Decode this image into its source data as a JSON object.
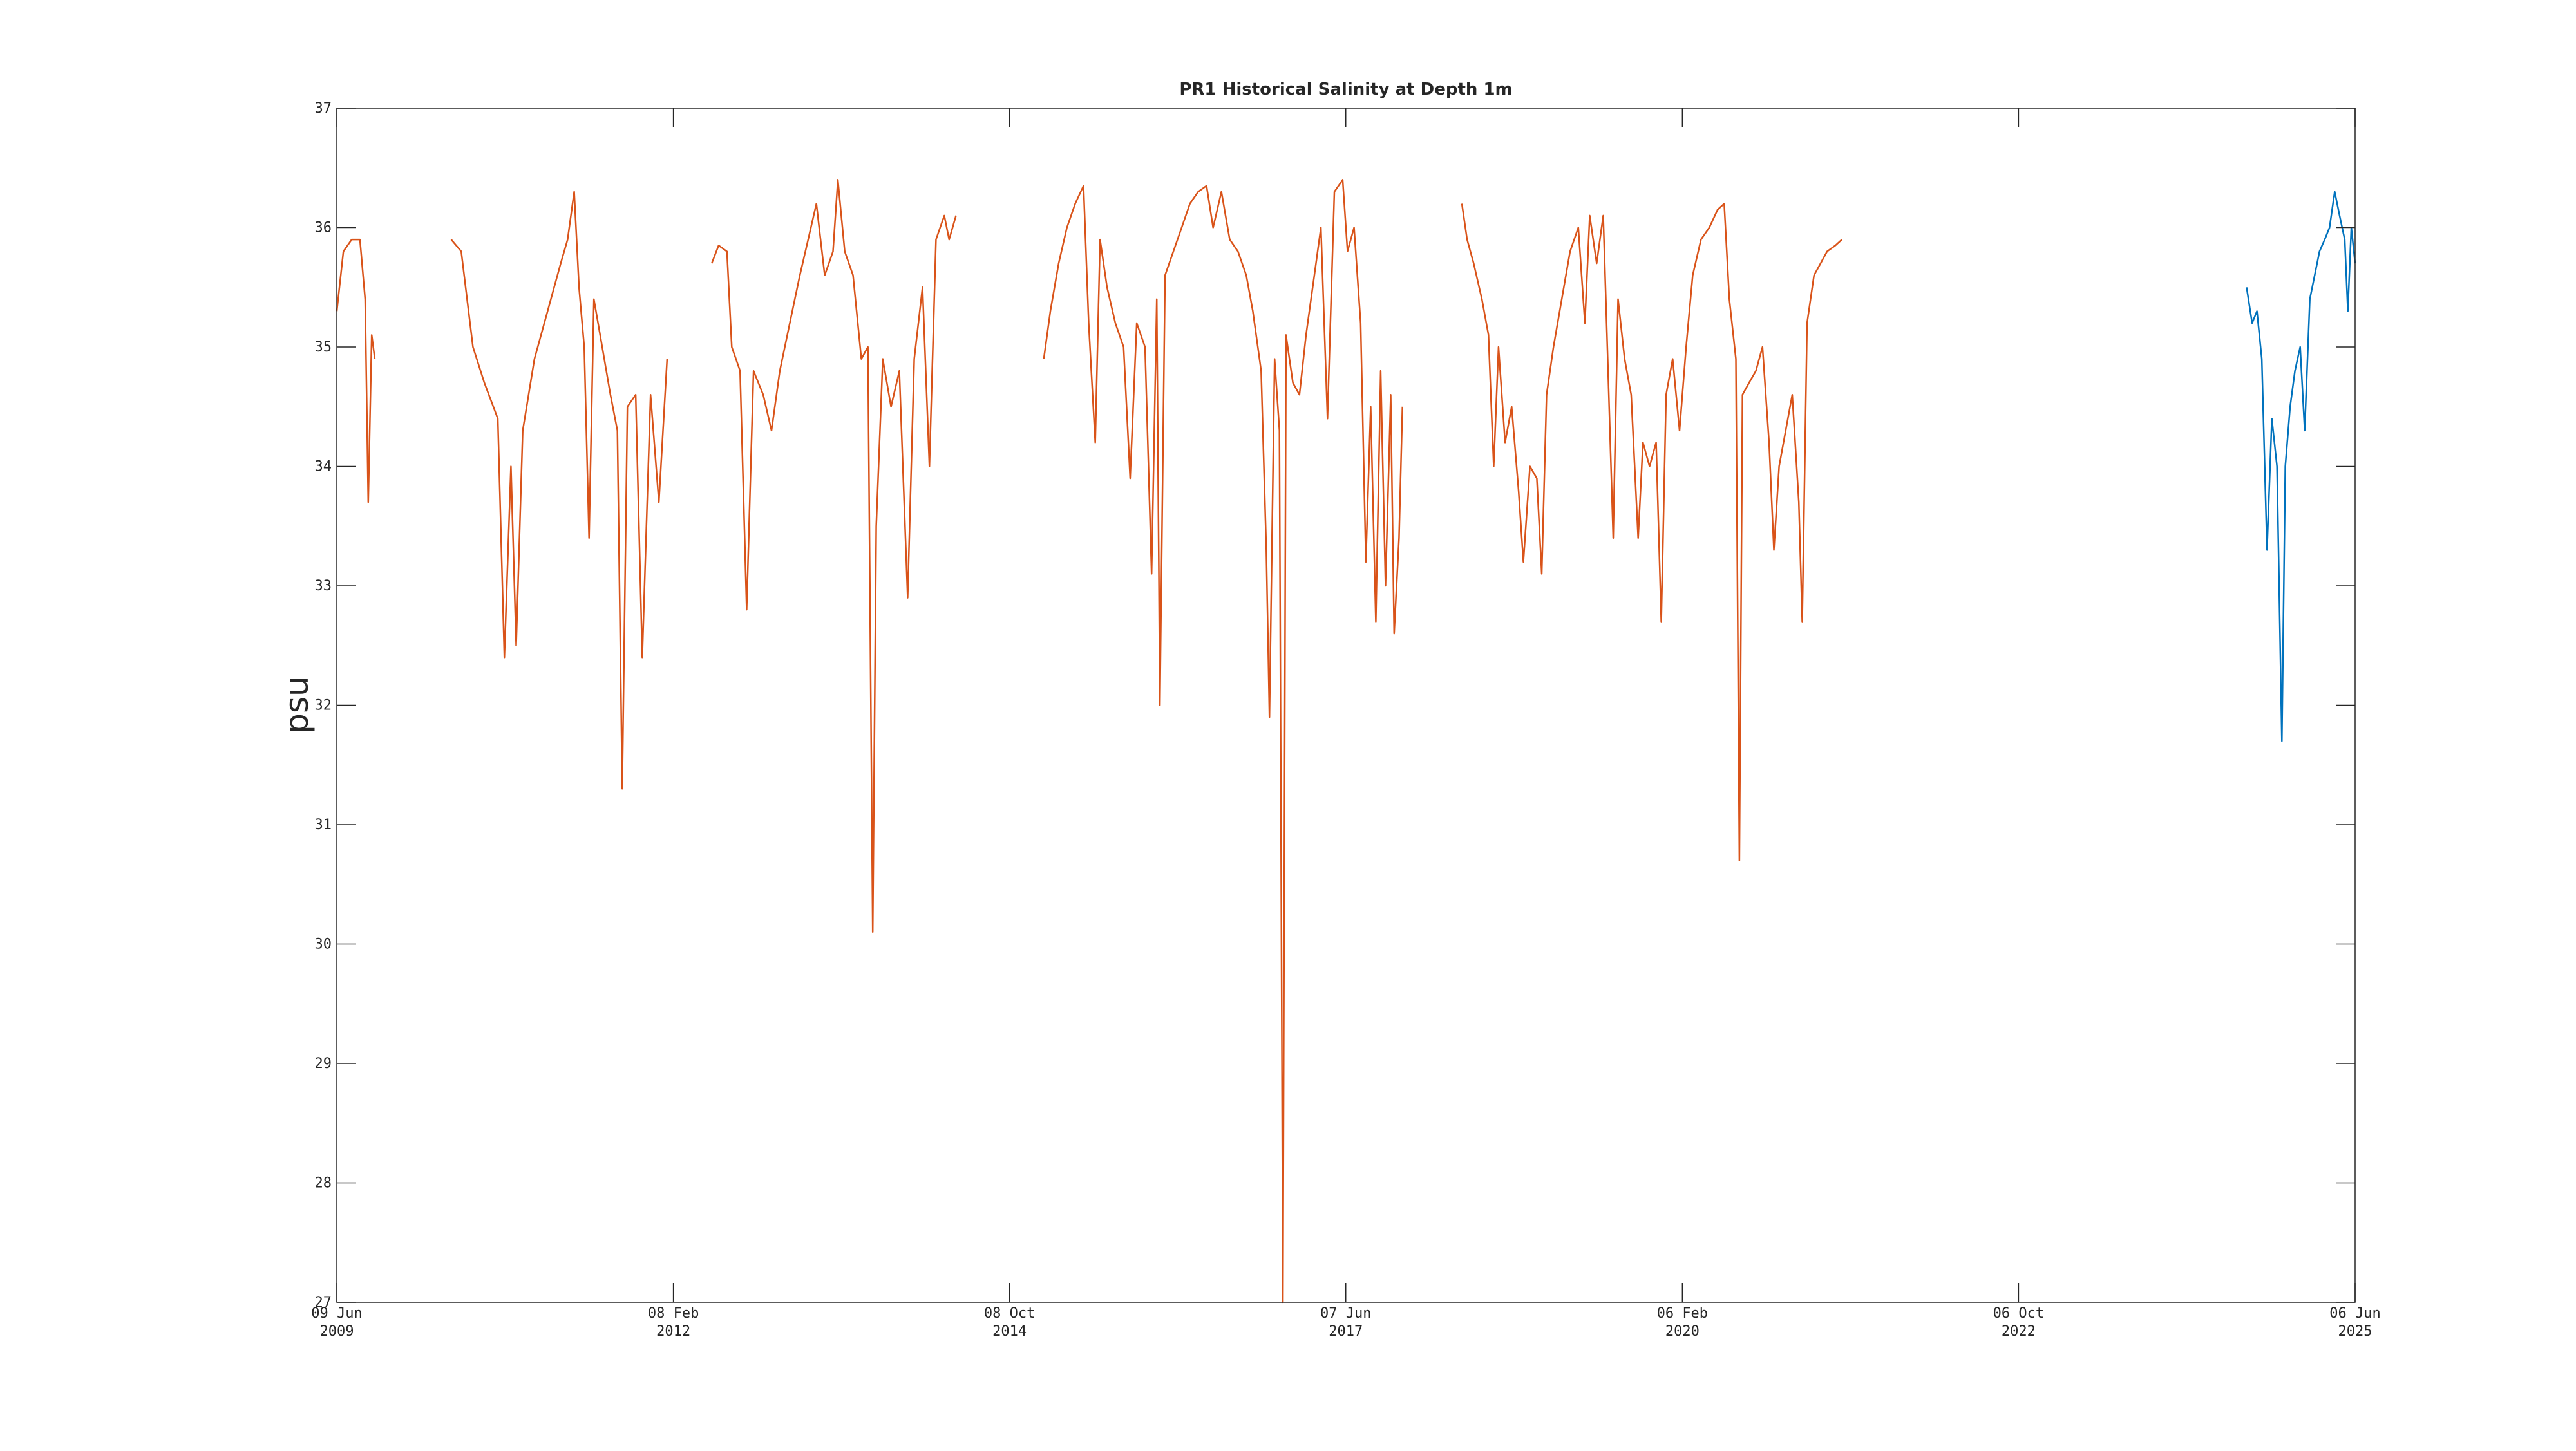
{
  "chart_data": {
    "type": "line",
    "title": "PR1 Historical Salinity at Depth 1m",
    "ylabel": "psu",
    "xlim": [
      "2009-06-09",
      "2025-06-06"
    ],
    "xticks": [
      {
        "value": "2009-06-09",
        "label": [
          "09 Jun",
          "2009"
        ]
      },
      {
        "value": "2012-02-08",
        "label": [
          "08 Feb",
          "2012"
        ]
      },
      {
        "value": "2014-10-08",
        "label": [
          "08 Oct",
          "2014"
        ]
      },
      {
        "value": "2017-06-07",
        "label": [
          "07 Jun",
          "2017"
        ]
      },
      {
        "value": "2020-02-06",
        "label": [
          "06 Feb",
          "2020"
        ]
      },
      {
        "value": "2022-10-06",
        "label": [
          "06 Oct",
          "2022"
        ]
      },
      {
        "value": "2025-06-06",
        "label": [
          "06 Jun",
          "2025"
        ]
      }
    ],
    "ylim": [
      27,
      37
    ],
    "yticks": [
      27,
      28,
      29,
      30,
      31,
      32,
      33,
      34,
      35,
      36,
      37
    ],
    "grid": false,
    "series": [
      {
        "color": "#d95319",
        "x": [
          "2009-06-09",
          "2009-06-28",
          "2009-07-22",
          "2009-08-15",
          "2009-08-30",
          "2009-09-08",
          "2009-09-18",
          "2009-09-27",
          null,
          "2010-05-06",
          "2010-06-04",
          "2010-07-08",
          "2010-08-10",
          "2010-09-18",
          "2010-10-07",
          "2010-10-26",
          "2010-11-10",
          "2010-11-29",
          "2011-01-02",
          "2011-02-09",
          "2011-03-19",
          "2011-04-08",
          "2011-04-27",
          "2011-05-11",
          "2011-05-26",
          "2011-06-09",
          "2011-06-23",
          "2011-07-17",
          "2011-08-10",
          "2011-08-30",
          "2011-09-13",
          "2011-09-28",
          "2011-10-22",
          "2011-11-10",
          "2011-12-04",
          "2011-12-28",
          "2012-01-21",
          null,
          "2012-05-29",
          "2012-06-18",
          "2012-07-12",
          "2012-07-26",
          "2012-08-19",
          "2012-09-07",
          "2012-09-27",
          "2012-10-25",
          "2012-11-18",
          "2012-12-12",
          "2013-01-10",
          "2013-02-08",
          "2013-03-04",
          "2013-03-28",
          "2013-04-21",
          "2013-05-15",
          "2013-05-29",
          "2013-06-18",
          "2013-07-12",
          "2013-08-05",
          "2013-08-24",
          "2013-09-07",
          "2013-09-17",
          "2013-10-06",
          "2013-10-30",
          "2013-11-23",
          "2013-12-17",
          "2014-01-05",
          "2014-01-29",
          "2014-02-18",
          "2014-03-09",
          "2014-04-02",
          "2014-04-16",
          "2014-05-06",
          null,
          "2015-01-15",
          "2015-02-03",
          "2015-02-27",
          "2015-03-23",
          "2015-04-16",
          "2015-05-10",
          "2015-05-25",
          "2015-06-13",
          "2015-06-27",
          "2015-07-17",
          "2015-08-10",
          "2015-09-03",
          "2015-09-22",
          "2015-10-11",
          "2015-11-04",
          "2015-11-23",
          "2015-12-08",
          "2015-12-17",
          "2016-01-01",
          "2016-01-25",
          "2016-02-18",
          "2016-03-13",
          "2016-04-06",
          "2016-04-30",
          "2016-05-19",
          "2016-06-12",
          "2016-07-06",
          "2016-07-30",
          "2016-08-23",
          "2016-09-11",
          "2016-10-05",
          "2016-10-20",
          "2016-10-29",
          "2016-11-13",
          "2016-11-27",
          "2016-12-07",
          "2016-12-16",
          "2017-01-05",
          "2017-01-24",
          "2017-02-12",
          "2017-03-08",
          "2017-03-27",
          "2017-04-15",
          "2017-05-05",
          "2017-05-29",
          "2017-06-12",
          "2017-07-01",
          "2017-07-20",
          "2017-08-04",
          "2017-08-18",
          "2017-09-02",
          "2017-09-16",
          "2017-09-30",
          "2017-10-15",
          "2017-10-25",
          "2017-11-08",
          "2017-11-18",
          null,
          "2018-05-09",
          "2018-05-24",
          "2018-06-12",
          "2018-07-06",
          "2018-07-25",
          "2018-08-09",
          "2018-08-23",
          "2018-09-11",
          "2018-09-30",
          "2018-10-20",
          "2018-11-03",
          "2018-11-22",
          "2018-12-12",
          "2018-12-26",
          "2019-01-09",
          "2019-01-29",
          "2019-02-22",
          "2019-03-18",
          "2019-04-11",
          "2019-04-30",
          "2019-05-14",
          "2019-06-03",
          "2019-06-22",
          "2019-07-06",
          "2019-07-21",
          "2019-08-04",
          "2019-08-23",
          "2019-09-11",
          "2019-10-01",
          "2019-10-15",
          "2019-11-03",
          "2019-11-22",
          "2019-12-07",
          "2019-12-21",
          "2020-01-09",
          "2020-01-29",
          "2020-02-17",
          "2020-03-07",
          "2020-03-31",
          "2020-04-24",
          "2020-05-18",
          "2020-06-06",
          "2020-06-21",
          "2020-07-10",
          "2020-07-20",
          "2020-07-29",
          "2020-08-17",
          "2020-09-06",
          "2020-09-25",
          "2020-10-14",
          "2020-10-28",
          "2020-11-12",
          "2020-12-01",
          "2020-12-20",
          "2021-01-08",
          "2021-01-18",
          "2021-02-01",
          "2021-02-21",
          "2021-03-12",
          "2021-03-31",
          "2021-04-24",
          "2021-05-13"
        ],
        "values": [
          35.3,
          35.8,
          35.9,
          35.9,
          35.4,
          33.7,
          35.1,
          34.9,
          null,
          35.9,
          35.8,
          35.0,
          34.7,
          34.4,
          32.4,
          34.0,
          32.5,
          34.3,
          34.9,
          35.3,
          35.7,
          35.9,
          36.3,
          35.5,
          35.0,
          33.4,
          35.4,
          35.0,
          34.6,
          34.3,
          31.3,
          34.5,
          34.6,
          32.4,
          34.6,
          33.7,
          34.9,
          null,
          35.7,
          35.85,
          35.8,
          35.0,
          34.8,
          32.8,
          34.8,
          34.6,
          34.3,
          34.8,
          35.2,
          35.6,
          35.9,
          36.2,
          35.6,
          35.8,
          36.4,
          35.8,
          35.6,
          34.9,
          35.0,
          30.1,
          33.5,
          34.9,
          34.5,
          34.8,
          32.9,
          34.9,
          35.5,
          34.0,
          35.9,
          36.1,
          35.9,
          36.1,
          null,
          34.9,
          35.3,
          35.7,
          36.0,
          36.2,
          36.35,
          35.2,
          34.2,
          35.9,
          35.5,
          35.2,
          35.0,
          33.9,
          35.2,
          35.0,
          33.1,
          35.4,
          32.0,
          35.6,
          35.8,
          36.0,
          36.2,
          36.3,
          36.35,
          36.0,
          36.3,
          35.9,
          35.8,
          35.6,
          35.3,
          34.8,
          33.3,
          31.9,
          34.9,
          34.3,
          27.0,
          35.1,
          34.7,
          34.6,
          35.1,
          35.6,
          36.0,
          34.4,
          36.3,
          36.4,
          35.8,
          36.0,
          35.2,
          33.2,
          34.5,
          32.7,
          34.8,
          33.0,
          34.6,
          32.6,
          33.4,
          34.5,
          null,
          36.2,
          35.9,
          35.7,
          35.4,
          35.1,
          34.0,
          35.0,
          34.2,
          34.5,
          33.8,
          33.2,
          34.0,
          33.9,
          33.1,
          34.6,
          35.0,
          35.4,
          35.8,
          36.0,
          35.2,
          36.1,
          35.7,
          36.1,
          34.8,
          33.4,
          35.4,
          34.9,
          34.6,
          33.4,
          34.2,
          34.0,
          34.2,
          32.7,
          34.6,
          34.9,
          34.3,
          35.0,
          35.6,
          35.9,
          36.0,
          36.15,
          36.2,
          35.4,
          34.9,
          30.7,
          34.6,
          34.7,
          34.8,
          35.0,
          34.2,
          33.3,
          34.0,
          34.3,
          34.6,
          33.7,
          32.7,
          35.2,
          35.6,
          35.7,
          35.8,
          35.85,
          35.9
        ]
      },
      {
        "color": "#0072bd",
        "x": [
          "2024-07-27",
          "2024-08-12",
          "2024-08-26",
          "2024-09-09",
          "2024-09-24",
          "2024-10-08",
          "2024-10-23",
          "2024-11-06",
          "2024-11-16",
          "2024-11-30",
          "2024-12-14",
          "2024-12-29",
          "2025-01-11",
          "2025-01-26",
          "2025-02-09",
          "2025-02-23",
          "2025-03-10",
          "2025-03-24",
          "2025-04-08",
          "2025-04-22",
          "2025-05-07",
          "2025-05-16",
          "2025-05-26",
          "2025-06-06"
        ],
        "values": [
          35.5,
          35.2,
          35.3,
          34.9,
          33.3,
          34.4,
          34.0,
          31.7,
          34.0,
          34.5,
          34.8,
          35.0,
          34.3,
          35.4,
          35.6,
          35.8,
          35.9,
          36.0,
          36.3,
          36.1,
          35.9,
          35.3,
          36.0,
          35.7
        ]
      }
    ]
  }
}
